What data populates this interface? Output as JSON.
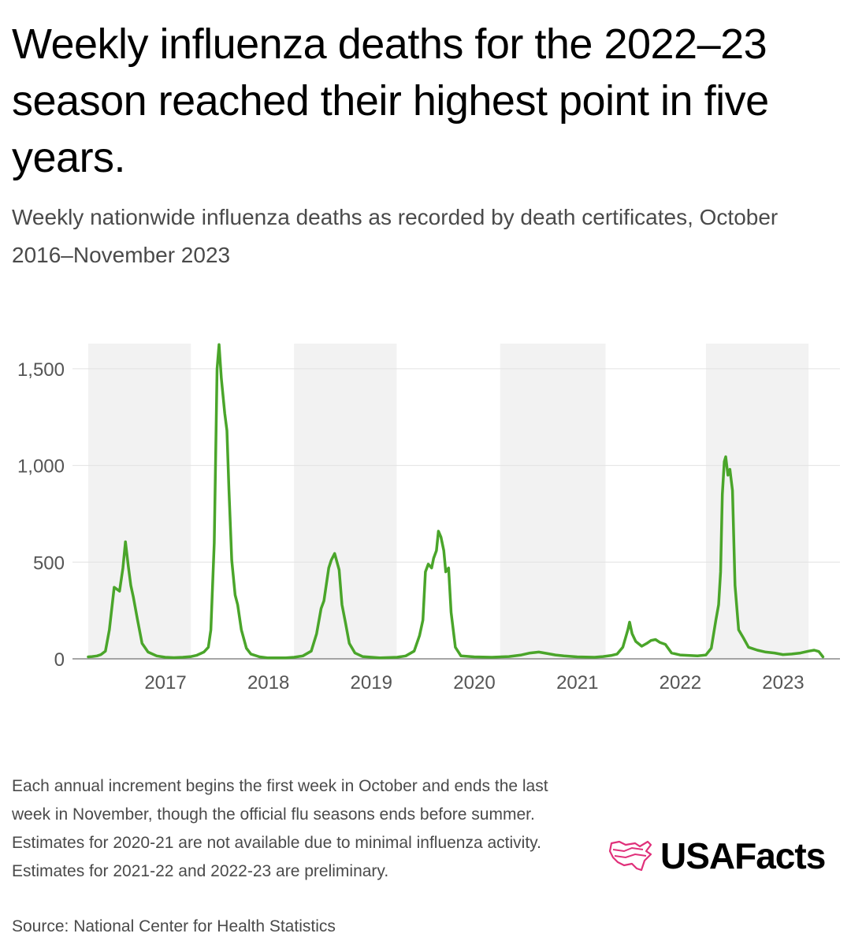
{
  "title": "Weekly influenza deaths for the 2022–23 season reached their highest point in five years.",
  "subtitle": "Weekly nationwide influenza deaths as recorded by death certificates, October 2016–November 2023",
  "note": "Each annual increment begins the first week in October and ends the last week in November, though the official flu seasons ends before summer. Estimates for 2020-21 are not available due to minimal influenza activity. Estimates for 2021-22 and 2022-23 are preliminary.",
  "source": "Source: National Center for Health Statistics",
  "logo": {
    "text": "USAFacts",
    "icon": "usa-map-icon"
  },
  "colors": {
    "line": "#4aa52a",
    "band": "#f2f2f2",
    "grid": "#e2e2e2",
    "axis": "#888888",
    "tick_text": "#555555",
    "logo_mark": "#e0307a"
  },
  "chart_data": {
    "type": "line",
    "title": "Weekly influenza deaths for the 2022–23 season reached their highest point in five years.",
    "subtitle": "Weekly nationwide influenza deaths as recorded by death certificates, October 2016–November 2023",
    "xlabel": "",
    "ylabel": "",
    "ylim": [
      0,
      1630
    ],
    "yticks": [
      0,
      500,
      1000,
      1500
    ],
    "ytick_labels": [
      "0",
      "500",
      "1,000",
      "1,500"
    ],
    "xlim": [
      "2016-10-01",
      "2023-11-30"
    ],
    "x_tick_labels": [
      "2017",
      "2018",
      "2019",
      "2020",
      "2021",
      "2022",
      "2023"
    ],
    "grid": true,
    "shaded_bands": [
      [
        "2016-10-01",
        "2017-09-30"
      ],
      [
        "2018-10-01",
        "2019-09-30"
      ],
      [
        "2020-10-01",
        "2021-10-10"
      ],
      [
        "2022-10-01",
        "2023-09-30"
      ]
    ],
    "series": [
      {
        "points": [
          [
            "2016-10-01",
            10
          ],
          [
            "2016-10-15",
            12
          ],
          [
            "2016-11-01",
            15
          ],
          [
            "2016-11-15",
            22
          ],
          [
            "2016-12-01",
            40
          ],
          [
            "2016-12-15",
            150
          ],
          [
            "2017-01-01",
            370
          ],
          [
            "2017-01-20",
            350
          ],
          [
            "2017-02-01",
            470
          ],
          [
            "2017-02-10",
            605
          ],
          [
            "2017-02-20",
            480
          ],
          [
            "2017-03-01",
            380
          ],
          [
            "2017-03-10",
            320
          ],
          [
            "2017-03-25",
            200
          ],
          [
            "2017-04-10",
            80
          ],
          [
            "2017-05-01",
            35
          ],
          [
            "2017-06-01",
            15
          ],
          [
            "2017-07-01",
            8
          ],
          [
            "2017-08-01",
            6
          ],
          [
            "2017-09-01",
            8
          ],
          [
            "2017-10-01",
            12
          ],
          [
            "2017-10-20",
            18
          ],
          [
            "2017-11-15",
            35
          ],
          [
            "2017-12-01",
            60
          ],
          [
            "2017-12-10",
            150
          ],
          [
            "2017-12-22",
            600
          ],
          [
            "2018-01-01",
            1500
          ],
          [
            "2018-01-08",
            1625
          ],
          [
            "2018-01-16",
            1450
          ],
          [
            "2018-01-28",
            1270
          ],
          [
            "2018-02-05",
            1180
          ],
          [
            "2018-02-12",
            880
          ],
          [
            "2018-02-22",
            510
          ],
          [
            "2018-03-06",
            330
          ],
          [
            "2018-03-15",
            280
          ],
          [
            "2018-03-28",
            150
          ],
          [
            "2018-04-15",
            55
          ],
          [
            "2018-05-01",
            25
          ],
          [
            "2018-06-01",
            10
          ],
          [
            "2018-07-01",
            5
          ],
          [
            "2018-09-01",
            5
          ],
          [
            "2018-10-01",
            8
          ],
          [
            "2018-11-01",
            15
          ],
          [
            "2018-12-01",
            40
          ],
          [
            "2018-12-20",
            130
          ],
          [
            "2019-01-05",
            260
          ],
          [
            "2019-01-15",
            300
          ],
          [
            "2019-02-01",
            470
          ],
          [
            "2019-02-10",
            510
          ],
          [
            "2019-02-22",
            545
          ],
          [
            "2019-03-10",
            460
          ],
          [
            "2019-03-20",
            280
          ],
          [
            "2019-04-01",
            190
          ],
          [
            "2019-04-15",
            80
          ],
          [
            "2019-05-05",
            30
          ],
          [
            "2019-06-01",
            12
          ],
          [
            "2019-08-01",
            5
          ],
          [
            "2019-10-01",
            8
          ],
          [
            "2019-11-01",
            15
          ],
          [
            "2019-12-01",
            40
          ],
          [
            "2019-12-20",
            120
          ],
          [
            "2020-01-01",
            200
          ],
          [
            "2020-01-10",
            450
          ],
          [
            "2020-01-20",
            490
          ],
          [
            "2020-02-01",
            470
          ],
          [
            "2020-02-08",
            520
          ],
          [
            "2020-02-18",
            560
          ],
          [
            "2020-02-25",
            660
          ],
          [
            "2020-03-05",
            630
          ],
          [
            "2020-03-15",
            560
          ],
          [
            "2020-03-22",
            450
          ],
          [
            "2020-04-01",
            470
          ],
          [
            "2020-04-10",
            240
          ],
          [
            "2020-04-25",
            60
          ],
          [
            "2020-05-15",
            15
          ],
          [
            "2020-07-01",
            10
          ],
          [
            "2020-09-01",
            8
          ],
          [
            "2020-11-01",
            12
          ],
          [
            "2020-12-15",
            20
          ],
          [
            "2021-01-15",
            30
          ],
          [
            "2021-02-15",
            35
          ],
          [
            "2021-03-15",
            28
          ],
          [
            "2021-04-15",
            20
          ],
          [
            "2021-05-15",
            15
          ],
          [
            "2021-07-01",
            10
          ],
          [
            "2021-09-01",
            8
          ],
          [
            "2021-10-01",
            12
          ],
          [
            "2021-11-01",
            18
          ],
          [
            "2021-11-20",
            25
          ],
          [
            "2021-12-10",
            60
          ],
          [
            "2021-12-28",
            150
          ],
          [
            "2022-01-03",
            190
          ],
          [
            "2022-01-12",
            130
          ],
          [
            "2022-01-25",
            90
          ],
          [
            "2022-02-15",
            65
          ],
          [
            "2022-03-05",
            80
          ],
          [
            "2022-03-20",
            95
          ],
          [
            "2022-04-05",
            100
          ],
          [
            "2022-04-20",
            85
          ],
          [
            "2022-05-10",
            75
          ],
          [
            "2022-06-01",
            30
          ],
          [
            "2022-07-01",
            20
          ],
          [
            "2022-09-01",
            15
          ],
          [
            "2022-10-01",
            20
          ],
          [
            "2022-10-20",
            55
          ],
          [
            "2022-11-05",
            200
          ],
          [
            "2022-11-15",
            280
          ],
          [
            "2022-11-22",
            450
          ],
          [
            "2022-11-28",
            850
          ],
          [
            "2022-12-05",
            1020
          ],
          [
            "2022-12-10",
            1045
          ],
          [
            "2022-12-18",
            950
          ],
          [
            "2022-12-25",
            980
          ],
          [
            "2023-01-03",
            870
          ],
          [
            "2023-01-12",
            380
          ],
          [
            "2023-01-25",
            150
          ],
          [
            "2023-02-10",
            110
          ],
          [
            "2023-03-01",
            60
          ],
          [
            "2023-04-01",
            45
          ],
          [
            "2023-05-01",
            35
          ],
          [
            "2023-06-01",
            30
          ],
          [
            "2023-07-01",
            22
          ],
          [
            "2023-08-01",
            25
          ],
          [
            "2023-09-01",
            30
          ],
          [
            "2023-10-01",
            40
          ],
          [
            "2023-10-20",
            45
          ],
          [
            "2023-11-05",
            38
          ],
          [
            "2023-11-20",
            10
          ]
        ]
      }
    ]
  }
}
